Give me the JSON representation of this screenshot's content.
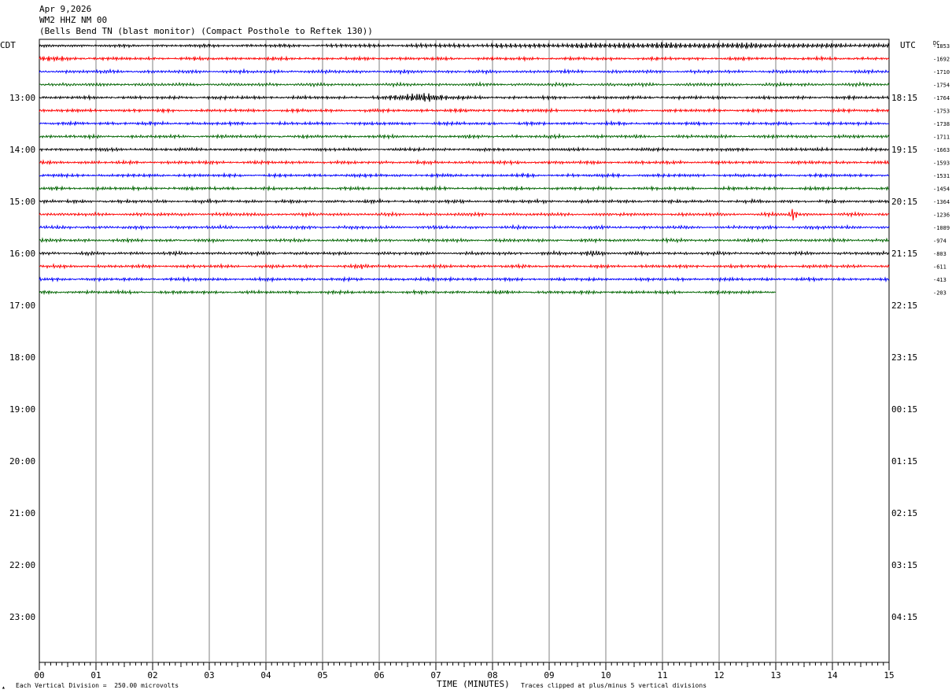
{
  "header": {
    "date": "Apr 9,2026",
    "station": "WM2 HHZ NM 00",
    "description": "(Bells Bend TN (blast monitor) (Compact Posthole to Reftek 130))"
  },
  "footer": {
    "scale_note": "Each Vertical Division =  250.00 microvolts",
    "clip_note": "Traces clipped at plus/minus 5 vertical divisions",
    "corner_mark": "▴"
  },
  "chart_data": {
    "type": "line",
    "title": "",
    "xlabel": "TIME (MINUTES)",
    "xlim": [
      0,
      15
    ],
    "x_ticks": [
      "00",
      "01",
      "02",
      "03",
      "04",
      "05",
      "06",
      "07",
      "08",
      "09",
      "10",
      "11",
      "12",
      "13",
      "14",
      "15"
    ],
    "left_axis_title": "CDT",
    "right_axis_title": "UTC",
    "dc_label": "DC",
    "left_hour_labels": [
      "13:00",
      "14:00",
      "15:00",
      "16:00",
      "17:00",
      "18:00",
      "19:00",
      "20:00",
      "21:00",
      "22:00",
      "23:00"
    ],
    "right_hour_labels": [
      "18:15",
      "19:15",
      "20:15",
      "21:15",
      "22:15",
      "23:15",
      "00:15",
      "01:15",
      "02:15",
      "03:15",
      "04:15"
    ],
    "rows_before_first_hour": 4,
    "rows_per_hour": 4,
    "trace_colors": [
      "#000000",
      "#ff0000",
      "#0000ff",
      "#006400"
    ],
    "traces": [
      {
        "dc": "-1853",
        "minutes": 15,
        "events": [
          {
            "t": 11.5,
            "amp": 1.8,
            "dur": 3.5
          }
        ]
      },
      {
        "dc": "-1692",
        "minutes": 15,
        "events": [
          {
            "t": 0.15,
            "amp": 1.8,
            "dur": 0.3
          }
        ]
      },
      {
        "dc": "-1710",
        "minutes": 15,
        "events": []
      },
      {
        "dc": "-1754",
        "minutes": 15,
        "events": []
      },
      {
        "dc": "-1764",
        "minutes": 15,
        "events": [
          {
            "t": 6.75,
            "amp": 4.5,
            "dur": 0.45
          }
        ]
      },
      {
        "dc": "-1753",
        "minutes": 15,
        "events": []
      },
      {
        "dc": "-1738",
        "minutes": 15,
        "events": []
      },
      {
        "dc": "-1711",
        "minutes": 15,
        "events": []
      },
      {
        "dc": "-1663",
        "minutes": 15,
        "events": []
      },
      {
        "dc": "-1593",
        "minutes": 15,
        "events": []
      },
      {
        "dc": "-1531",
        "minutes": 15,
        "events": []
      },
      {
        "dc": "-1454",
        "minutes": 15,
        "events": []
      },
      {
        "dc": "-1364",
        "minutes": 15,
        "events": []
      },
      {
        "dc": "-1236",
        "minutes": 15,
        "events": [
          {
            "t": 13.3,
            "amp": 7,
            "dur": 0.06
          }
        ]
      },
      {
        "dc": "-1089",
        "minutes": 15,
        "events": []
      },
      {
        "dc": "-974",
        "minutes": 15,
        "events": []
      },
      {
        "dc": "-803",
        "minutes": 15,
        "events": [
          {
            "t": 9.8,
            "amp": 2.2,
            "dur": 0.2
          }
        ]
      },
      {
        "dc": "-611",
        "minutes": 15,
        "events": [
          {
            "t": 5.7,
            "amp": 1.5,
            "dur": 0.1
          }
        ]
      },
      {
        "dc": "-413",
        "minutes": 15,
        "events": [
          {
            "t": 7.3,
            "amp": 1.5,
            "dur": 0.1
          }
        ]
      },
      {
        "dc": "-203",
        "minutes": 13,
        "events": []
      }
    ]
  }
}
